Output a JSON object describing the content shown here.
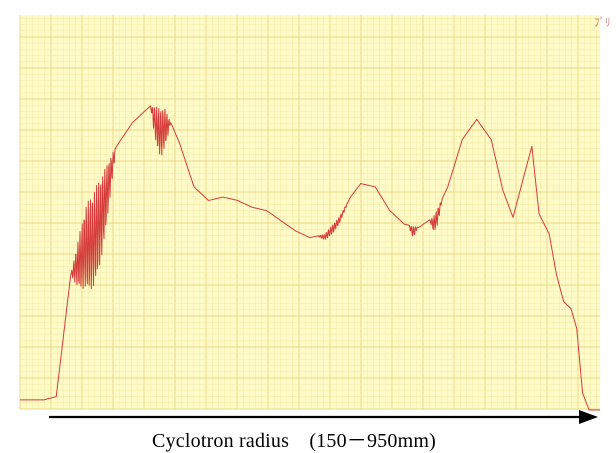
{
  "colors": {
    "paper": "#fffbc9",
    "grid_minor": "#f3e9a4",
    "grid_major": "#e8d783",
    "trace": "#d43c3c",
    "arrow": "#000000"
  },
  "annotation": "ﾌﾟﾘ",
  "chart_data": {
    "type": "line",
    "title": "",
    "subtitle": "",
    "xlabel": "Cyclotron radius　(150－950mm)",
    "ylabel": "",
    "xlim": [
      150,
      950
    ],
    "ylim": [
      0,
      100
    ],
    "grid": true,
    "legend": "none",
    "series": [
      {
        "x": [
          150,
          160,
          183,
          200,
          220,
          240,
          262,
          280,
          305,
          330,
          350,
          370,
          390,
          410,
          430,
          450,
          470,
          490,
          510,
          530,
          550,
          570,
          590,
          606,
          620,
          640,
          660,
          680,
          700,
          720,
          740,
          760,
          780,
          800,
          816,
          830,
          846,
          856,
          866,
          880,
          890,
          900,
          910,
          918,
          926,
          935,
          950
        ],
        "y": [
          3,
          3,
          3,
          4,
          40,
          60,
          69,
          77,
          85,
          90,
          89,
          79,
          66,
          62,
          63,
          62,
          60,
          59,
          56,
          53,
          51,
          52,
          57,
          63,
          67,
          66,
          59,
          55,
          54,
          57,
          66,
          80,
          86,
          80,
          65,
          57,
          70,
          78,
          58,
          52,
          40,
          32,
          30,
          24,
          5,
          0,
          0
        ]
      }
    ],
    "oscillations": [
      {
        "x_range": [
          220,
          292
        ],
        "amplitude": 28
      },
      {
        "x_range": [
          330,
          362
        ],
        "amplitude": 14
      },
      {
        "x_range": [
          560,
          610
        ],
        "amplitude": 2.5
      },
      {
        "x_range": [
          686,
          700
        ],
        "amplitude": 3
      },
      {
        "x_range": [
          715,
          735
        ],
        "amplitude": 5
      }
    ]
  }
}
